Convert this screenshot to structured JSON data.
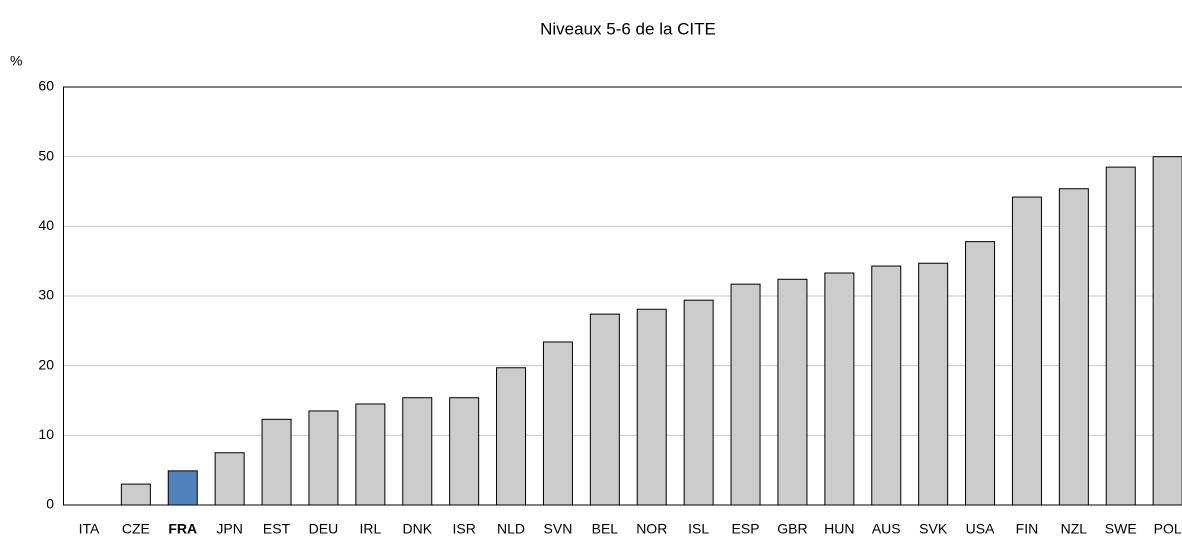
{
  "chart_data": {
    "type": "bar",
    "title": "Niveaux 5-6 de la CITE",
    "y_label": "%",
    "categories": [
      "ITA",
      "CZE",
      "FRA",
      "JPN",
      "EST",
      "DEU",
      "IRL",
      "DNK",
      "ISR",
      "NLD",
      "SVN",
      "BEL",
      "NOR",
      "ISL",
      "ESP",
      "GBR",
      "HUN",
      "AUS",
      "SVK",
      "USA",
      "FIN",
      "NZL",
      "SWE",
      "POL"
    ],
    "values": [
      0,
      3.0,
      4.9,
      7.5,
      12.3,
      13.5,
      14.5,
      15.4,
      15.4,
      19.7,
      23.4,
      27.4,
      28.1,
      29.4,
      31.7,
      32.4,
      33.3,
      34.3,
      34.7,
      37.8,
      44.2,
      45.4,
      48.5,
      50.0
    ],
    "color": "#cccccc",
    "highlight": "FRA",
    "highlight_color": "#4f81bd",
    "ylim": [
      0,
      60
    ],
    "yticks": [
      0,
      10,
      20,
      30,
      40,
      50,
      60
    ],
    "grid": true
  }
}
